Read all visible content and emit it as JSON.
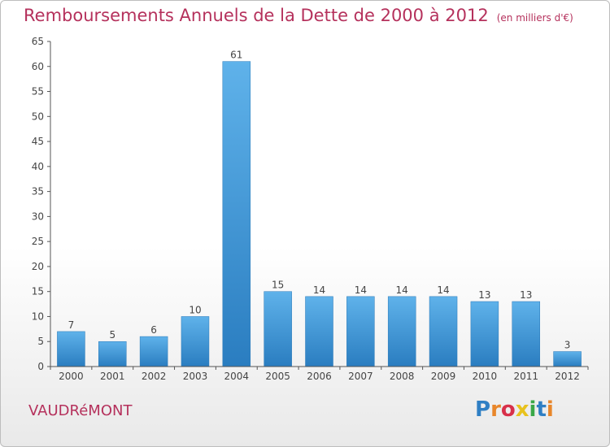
{
  "title": "Remboursements Annuels de la Dette de 2000 à 2012",
  "subtitle": "(en milliers d'€)",
  "commune": "VAUDRéMONT",
  "logo": {
    "text": "Proxiti",
    "colors": [
      "#2f7fc4",
      "#e8862a",
      "#d8304a",
      "#e8c21e",
      "#3aa848",
      "#2f7fc4",
      "#e8862a"
    ]
  },
  "colors": {
    "title": "#b5315c",
    "bar_light": "#5aaee8",
    "bar_dark": "#2a7dc0",
    "axis": "#444444"
  },
  "chart_data": {
    "type": "bar",
    "categories": [
      "2000",
      "2001",
      "2002",
      "2003",
      "2004",
      "2005",
      "2006",
      "2007",
      "2008",
      "2009",
      "2010",
      "2011",
      "2012"
    ],
    "values": [
      7,
      5,
      6,
      10,
      61,
      15,
      14,
      14,
      14,
      14,
      13,
      13,
      3
    ],
    "ylim": [
      0,
      65
    ],
    "yticks": [
      0,
      5,
      10,
      15,
      20,
      25,
      30,
      35,
      40,
      45,
      50,
      55,
      60,
      65
    ],
    "grid": false,
    "xlabel": "",
    "ylabel": ""
  }
}
